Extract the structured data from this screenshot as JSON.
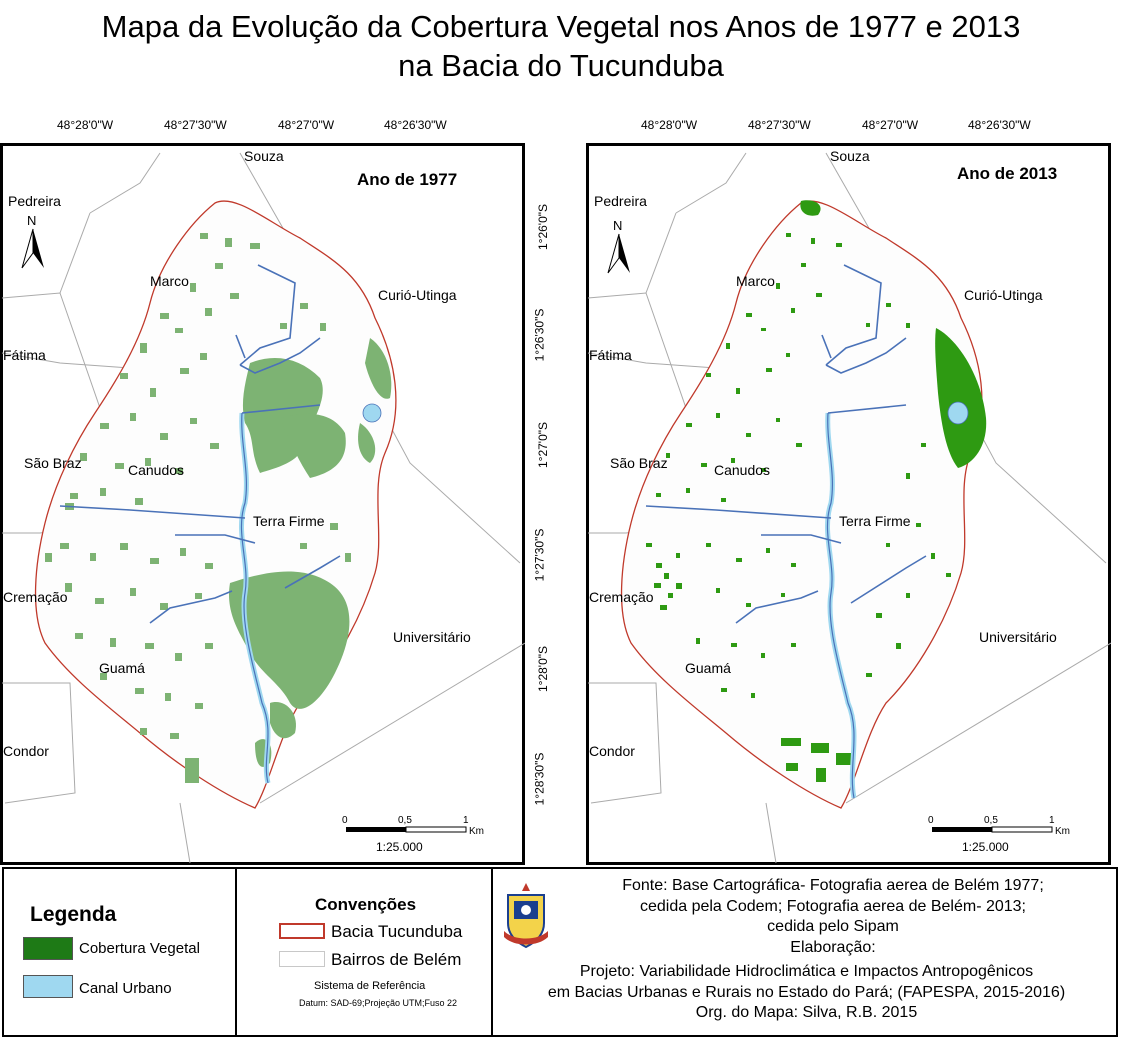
{
  "title": {
    "line1": "Mapa da Evolução da Cobertura Vegetal nos Anos de 1977 e 2013",
    "line2": "na Bacia do Tucunduba"
  },
  "coords": {
    "top": [
      "48°28'0\"W",
      "48°27'30\"W",
      "48°27'0\"W",
      "48°26'30\"W"
    ],
    "side": [
      "1°26'0\"S",
      "1°26'30\"S",
      "1°27'0\"S",
      "1°27'30\"S",
      "1°28'0\"S",
      "1°28'30\"S"
    ]
  },
  "maps": [
    {
      "year_label": "Ano de 1977",
      "neighborhoods": {
        "souza": "Souza",
        "pedreira": "Pedreira",
        "marco": "Marco",
        "curio": "Curió-Utinga",
        "fatima": "Fátima",
        "sao_braz": "São Braz",
        "canudos": "Canudos",
        "terra_firme": "Terra Firme",
        "cremacao": "Cremação",
        "universitario": "Universitário",
        "guama": "Guamá",
        "condor": "Condor"
      },
      "north": "N",
      "scale": {
        "t0": "0",
        "t1": "0,5",
        "t2": "1",
        "unit": "Km",
        "ratio": "1:25.000"
      }
    },
    {
      "year_label": "Ano de 2013",
      "neighborhoods": {
        "souza": "Souza",
        "pedreira": "Pedreira",
        "marco": "Marco",
        "curio": "Curió-Utinga",
        "fatima": "Fátima",
        "sao_braz": "São Braz",
        "canudos": "Canudos",
        "terra_firme": "Terra Firme",
        "cremacao": "Cremação",
        "universitario": "Universitário",
        "guama": "Guamá",
        "condor": "Condor"
      },
      "north": "N",
      "scale": {
        "t0": "0",
        "t1": "0,5",
        "t2": "1",
        "unit": "Km",
        "ratio": "1:25.000"
      }
    }
  ],
  "legend": {
    "title": "Legenda",
    "items": [
      {
        "label": "Cobertura Vegetal",
        "color": "#1e7a16"
      },
      {
        "label": "Canal Urbano",
        "color": "#9fd8f0"
      }
    ]
  },
  "conventions": {
    "title": "Convenções",
    "items": [
      {
        "label": "Bacia Tucunduba",
        "color": "#c0392b"
      },
      {
        "label": "Bairros de Belém",
        "color": "#c8c8c8"
      }
    ],
    "ref_title": "Sistema de Referência",
    "datum": "Datum: SAD-69;Projeção UTM;Fuso 22"
  },
  "credits": {
    "lines": [
      "Fonte: Base Cartográfica- Fotografia aerea de Belém 1977;",
      "cedida pela Codem; Fotografia aerea de Belém- 2013;",
      "cedida pelo Sipam",
      "Elaboração:",
      "Projeto: Variabilidade Hidroclimática e Impactos Antropogênicos",
      "em Bacias Urbanas e Rurais no Estado do Pará; (FAPESPA, 2015-2016)",
      "Org. do Mapa: Silva, R.B. 2015"
    ]
  },
  "colors": {
    "veg_1977": "#7db373",
    "veg_2013": "#2e9a12",
    "canal": "#9fd8f0",
    "canal_line": "#4a72b8",
    "basin": "#c0392b",
    "district": "#aaaaaa"
  }
}
